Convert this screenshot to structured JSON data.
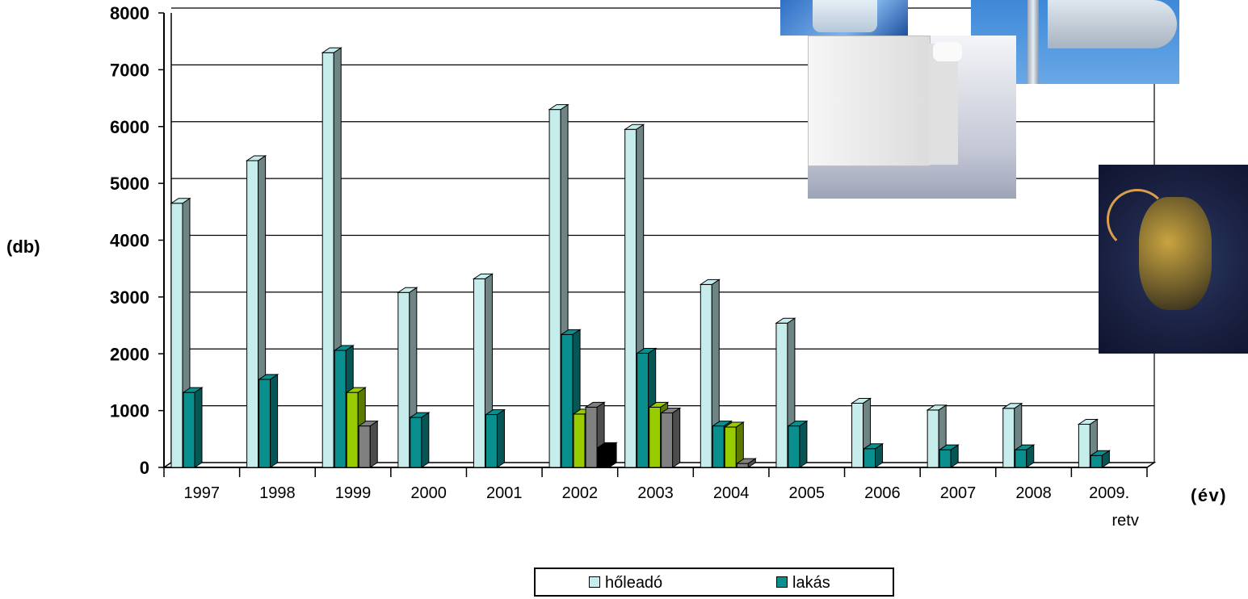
{
  "chart_data": {
    "type": "bar",
    "categories": [
      "1997",
      "1998",
      "1999",
      "2000",
      "2001",
      "2002",
      "2003",
      "2004",
      "2005",
      "2006",
      "2007",
      "2008",
      "2009."
    ],
    "category_sublabels": [
      "",
      "",
      "",
      "",
      "",
      "",
      "",
      "",
      "",
      "",
      "",
      "",
      "retv"
    ],
    "ylabel": "(db)",
    "xlabel": "(év)",
    "ylim": [
      0,
      8000
    ],
    "yticks": [
      0,
      1000,
      2000,
      3000,
      4000,
      5000,
      6000,
      7000,
      8000
    ],
    "grid": true,
    "legend_position": "bottom-center",
    "series": [
      {
        "name": "hőleadó",
        "color": "#c6ecec",
        "values": [
          4650,
          5400,
          7300,
          3080,
          3320,
          6300,
          5950,
          3220,
          2540,
          1130,
          1010,
          1040,
          760
        ]
      },
      {
        "name": "lakás",
        "color": "#0a8f8f",
        "values": [
          1320,
          1550,
          2060,
          880,
          930,
          2340,
          2010,
          730,
          730,
          330,
          310,
          310,
          210
        ]
      },
      {
        "name": "",
        "color": "#99cc00",
        "values": [
          0,
          0,
          1320,
          0,
          0,
          940,
          1060,
          710,
          0,
          0,
          0,
          0,
          0
        ]
      },
      {
        "name": "",
        "color": "#808080",
        "values": [
          0,
          0,
          730,
          0,
          0,
          1060,
          960,
          70,
          0,
          0,
          0,
          0,
          0
        ]
      },
      {
        "name": "",
        "color": "#000000",
        "values": [
          0,
          0,
          0,
          0,
          0,
          350,
          0,
          0,
          0,
          0,
          0,
          0,
          0
        ]
      }
    ]
  },
  "legend": {
    "items": [
      {
        "label": "hőleadó",
        "color": "#c6ecec"
      },
      {
        "label": "lakás",
        "color": "#0a8f8f"
      }
    ]
  },
  "photos": [
    {
      "name": "thermostat-head-photo",
      "color": "#4b8fd6"
    },
    {
      "name": "radiator-valve-photo",
      "color": "#5b9fdc"
    },
    {
      "name": "panel-radiator-photo",
      "color": "#e8e8ec"
    },
    {
      "name": "differential-pressure-regulator-photo",
      "color": "#1e2244"
    }
  ]
}
